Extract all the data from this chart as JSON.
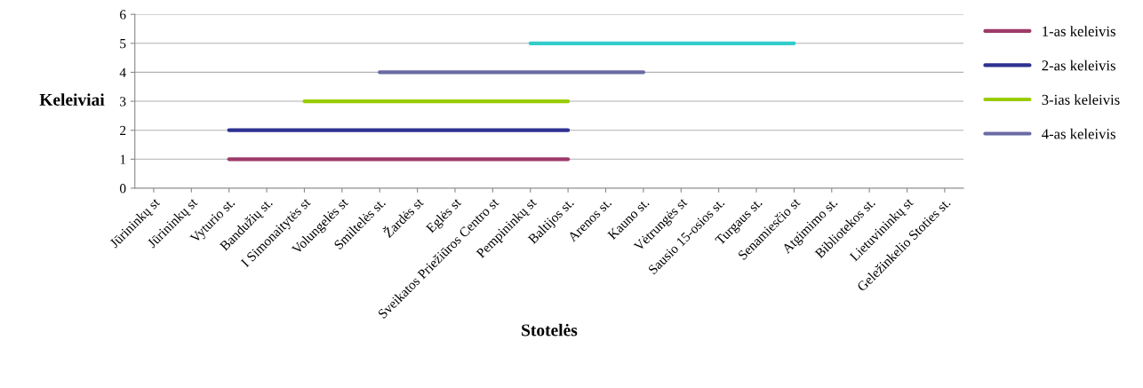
{
  "chart_data": {
    "type": "line",
    "xlabel": "Stotelės",
    "ylabel": "Keleiviai",
    "categories": [
      "Jūrininkų st",
      "Jūrininkų st",
      "Vyturio st.",
      "Bandužių st.",
      "I Simonaitytės st",
      "Volungelės st",
      "Smiltelės st.",
      "Žardės st",
      "Eglės st",
      "Sveikatos Priežiūros Centro st",
      "Pempininkų st",
      "Baltijos st.",
      "Arenos st.",
      "Kauno st.",
      "Vėtrungės st",
      "Sausio 15-osios st.",
      "Turgaus st.",
      "Senamiesčio st",
      "Atgimimo st.",
      "Bibliotekos st.",
      "Lietuvininkų st",
      "Geležinkelio Stoties st."
    ],
    "series": [
      {
        "name": "1-as keleivis",
        "color": "#9e3a6a",
        "values": [
          null,
          null,
          1,
          1,
          1,
          1,
          1,
          1,
          1,
          1,
          1,
          1,
          null,
          null,
          null,
          null,
          null,
          null,
          null,
          null,
          null,
          null
        ]
      },
      {
        "name": "2-as keleivis",
        "color": "#2e3192",
        "values": [
          null,
          null,
          2,
          2,
          2,
          2,
          2,
          2,
          2,
          2,
          2,
          2,
          null,
          null,
          null,
          null,
          null,
          null,
          null,
          null,
          null,
          null
        ]
      },
      {
        "name": "3-ias keleivis",
        "color": "#99cc00",
        "values": [
          null,
          null,
          null,
          null,
          3,
          3,
          3,
          3,
          3,
          3,
          3,
          3,
          null,
          null,
          null,
          null,
          null,
          null,
          null,
          null,
          null,
          null
        ]
      },
      {
        "name": "4-as keleivis",
        "color": "#6a6aa4",
        "values": [
          null,
          null,
          null,
          null,
          null,
          null,
          4,
          4,
          4,
          4,
          4,
          4,
          4,
          4,
          null,
          null,
          null,
          null,
          null,
          null,
          null,
          null
        ]
      },
      {
        "color": "#33cccc",
        "values": [
          null,
          null,
          null,
          null,
          null,
          null,
          null,
          null,
          null,
          null,
          5,
          5,
          5,
          5,
          5,
          5,
          5,
          5,
          null,
          null,
          null,
          null
        ]
      }
    ],
    "ylim": [
      0,
      6
    ],
    "yticks": [
      0,
      1,
      2,
      3,
      4,
      5,
      6
    ],
    "grid": "y",
    "legend": "right",
    "marker": "none",
    "line_style": "solid"
  }
}
